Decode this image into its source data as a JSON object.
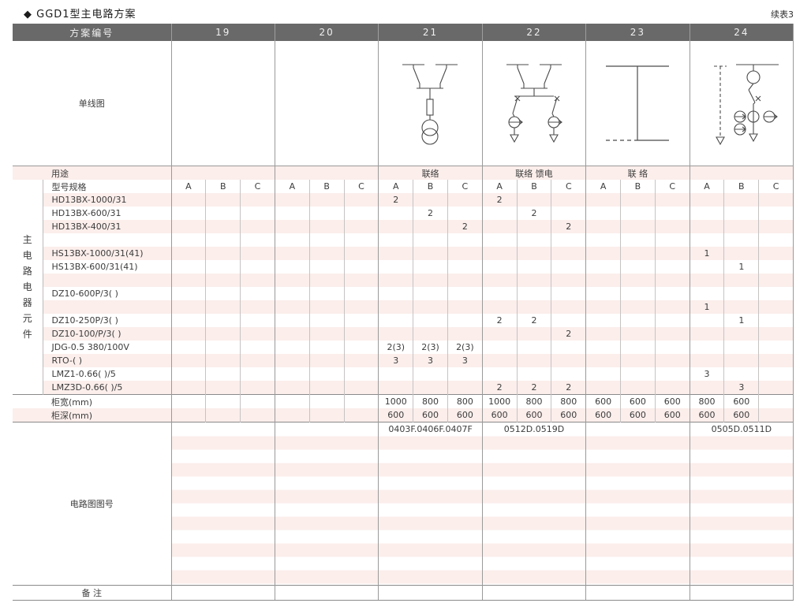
{
  "page": {
    "title": "◆ GGD1型主电路方案",
    "continuation_note": "续表3"
  },
  "colors": {
    "header_bg": "#696969",
    "stripe_pink": "#fbeeeb",
    "grid_line": "#9a9a9a"
  },
  "table": {
    "header": {
      "scheme_label": "方案编号",
      "scheme_numbers": [
        "19",
        "20",
        "21",
        "22",
        "23",
        "24"
      ]
    },
    "diagram_row": {
      "label": "单线图",
      "diagrams": {
        "21": "two-incoming-switches-fuse-voltage-transformer-diagram",
        "22": "two-incoming-switches-two-feeder-breakers-with-cts-diagram",
        "23": "bus-tie-link-diagram",
        "24": "metering-breaker-feeder-with-cts-and-dashed-branch-diagram"
      }
    },
    "usage_row": {
      "label": "用途",
      "values": [
        "",
        "",
        "联络",
        "联络 馈电",
        "联 络",
        ""
      ]
    },
    "spec_row": {
      "label": "型号规格",
      "subcolumns": [
        "A",
        "B",
        "C"
      ]
    },
    "component_sidebar": "主电路电器元件",
    "component_rows": [
      {
        "label": "HD13BX-1000/31",
        "values": [
          "",
          "",
          "",
          "",
          "",
          "",
          "2",
          "",
          "",
          "2",
          "",
          "",
          "",
          "",
          "",
          "",
          "",
          ""
        ]
      },
      {
        "label": "HD13BX-600/31",
        "values": [
          "",
          "",
          "",
          "",
          "",
          "",
          "",
          "2",
          "",
          "",
          "2",
          "",
          "",
          "",
          "",
          "",
          "",
          ""
        ]
      },
      {
        "label": "HD13BX-400/31",
        "values": [
          "",
          "",
          "",
          "",
          "",
          "",
          "",
          "",
          "2",
          "",
          "",
          "2",
          "",
          "",
          "",
          "",
          "",
          ""
        ]
      },
      {
        "label": "",
        "values": [
          "",
          "",
          "",
          "",
          "",
          "",
          "",
          "",
          "",
          "",
          "",
          "",
          "",
          "",
          "",
          "",
          "",
          ""
        ]
      },
      {
        "label": "HS13BX-1000/31(41)",
        "values": [
          "",
          "",
          "",
          "",
          "",
          "",
          "",
          "",
          "",
          "",
          "",
          "",
          "",
          "",
          "",
          "1",
          "",
          ""
        ]
      },
      {
        "label": "HS13BX-600/31(41)",
        "values": [
          "",
          "",
          "",
          "",
          "",
          "",
          "",
          "",
          "",
          "",
          "",
          "",
          "",
          "",
          "",
          "",
          "1",
          ""
        ]
      },
      {
        "label": "",
        "values": [
          "",
          "",
          "",
          "",
          "",
          "",
          "",
          "",
          "",
          "",
          "",
          "",
          "",
          "",
          "",
          "",
          "",
          ""
        ]
      },
      {
        "label": "DZ10-600P/3(  )",
        "values": [
          "",
          "",
          "",
          "",
          "",
          "",
          "",
          "",
          "",
          "",
          "",
          "",
          "",
          "",
          "",
          "",
          "",
          ""
        ]
      },
      {
        "label": "",
        "values": [
          "",
          "",
          "",
          "",
          "",
          "",
          "",
          "",
          "",
          "",
          "",
          "",
          "",
          "",
          "",
          "1",
          "",
          ""
        ]
      },
      {
        "label": "DZ10-250P/3(  )",
        "values": [
          "",
          "",
          "",
          "",
          "",
          "",
          "",
          "",
          "",
          "2",
          "2",
          "",
          "",
          "",
          "",
          "",
          "1",
          ""
        ]
      },
      {
        "label": "DZ10-100/P/3(  )",
        "values": [
          "",
          "",
          "",
          "",
          "",
          "",
          "",
          "",
          "",
          "",
          "",
          "2",
          "",
          "",
          "",
          "",
          "",
          ""
        ]
      },
      {
        "label": "JDG-0.5 380/100V",
        "values": [
          "",
          "",
          "",
          "",
          "",
          "",
          "2(3)",
          "2(3)",
          "2(3)",
          "",
          "",
          "",
          "",
          "",
          "",
          "",
          "",
          ""
        ]
      },
      {
        "label": "RTO-(  )",
        "values": [
          "",
          "",
          "",
          "",
          "",
          "",
          "3",
          "3",
          "3",
          "",
          "",
          "",
          "",
          "",
          "",
          "",
          "",
          ""
        ]
      },
      {
        "label": "LMZ1-0.66(  )/5",
        "values": [
          "",
          "",
          "",
          "",
          "",
          "",
          "",
          "",
          "",
          "",
          "",
          "",
          "",
          "",
          "",
          "3",
          "",
          ""
        ]
      },
      {
        "label": "LMZ3D-0.66(  )/5",
        "values": [
          "",
          "",
          "",
          "",
          "",
          "",
          "",
          "",
          "",
          "2",
          "2",
          "2",
          "",
          "",
          "",
          "",
          "3",
          ""
        ]
      }
    ],
    "width_row": {
      "label": "柜宽(mm)",
      "values": [
        "",
        "",
        "",
        "",
        "",
        "",
        "1000",
        "800",
        "800",
        "1000",
        "800",
        "800",
        "600",
        "600",
        "600",
        "800",
        "600",
        ""
      ]
    },
    "depth_row": {
      "label": "柜深(mm)",
      "values": [
        "",
        "",
        "",
        "",
        "",
        "",
        "600",
        "600",
        "600",
        "600",
        "600",
        "600",
        "600",
        "600",
        "600",
        "600",
        "600",
        ""
      ]
    },
    "drawing_section": {
      "label": "电路图图号",
      "values": [
        "",
        "",
        "0403F.0406F.0407F",
        "0512D.0519D",
        "",
        "0505D.0511D"
      ]
    },
    "remarks_row": {
      "label": "备 注"
    }
  }
}
